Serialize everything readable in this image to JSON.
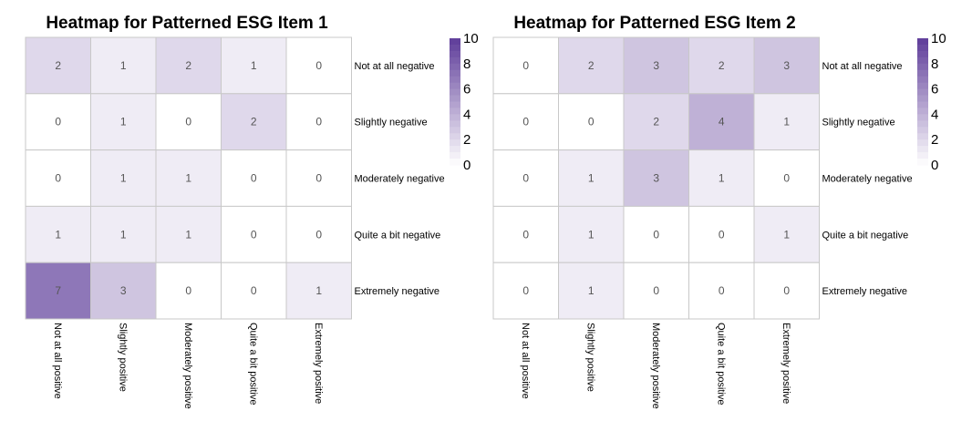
{
  "chart_data": [
    {
      "type": "heatmap",
      "title": "Heatmap for Patterned ESG Item 1",
      "rows": [
        "Not at all negative",
        "Slightly negative",
        "Moderately negative",
        "Quite a bit negative",
        "Extremely negative"
      ],
      "columns": [
        "Not at all positive",
        "Slightly positive",
        "Moderately positive",
        "Quite a bit positive",
        "Extremely positive"
      ],
      "values": [
        [
          2,
          1,
          2,
          1,
          0
        ],
        [
          0,
          1,
          0,
          2,
          0
        ],
        [
          0,
          1,
          1,
          0,
          0
        ],
        [
          1,
          1,
          1,
          0,
          0
        ],
        [
          7,
          3,
          0,
          0,
          1
        ]
      ],
      "color_scale": {
        "min": 0,
        "max": 10,
        "ticks": [
          0,
          2,
          4,
          6,
          8,
          10
        ],
        "low_color": "#ffffff",
        "high_color": "#5e3c99"
      },
      "legend_position": "top-right"
    },
    {
      "type": "heatmap",
      "title": "Heatmap for Patterned ESG Item 2",
      "rows": [
        "Not at all negative",
        "Slightly negative",
        "Moderately negative",
        "Quite a bit negative",
        "Extremely negative"
      ],
      "columns": [
        "Not at all positive",
        "Slightly positive",
        "Moderately positive",
        "Quite a bit positive",
        "Extremely positive"
      ],
      "values": [
        [
          0,
          2,
          3,
          2,
          3
        ],
        [
          0,
          0,
          2,
          4,
          1
        ],
        [
          0,
          1,
          3,
          1,
          0
        ],
        [
          0,
          1,
          0,
          0,
          1
        ],
        [
          0,
          1,
          0,
          0,
          0
        ]
      ],
      "color_scale": {
        "min": 0,
        "max": 10,
        "ticks": [
          0,
          2,
          4,
          6,
          8,
          10
        ],
        "low_color": "#ffffff",
        "high_color": "#5e3c99"
      },
      "legend_position": "top-right"
    }
  ]
}
